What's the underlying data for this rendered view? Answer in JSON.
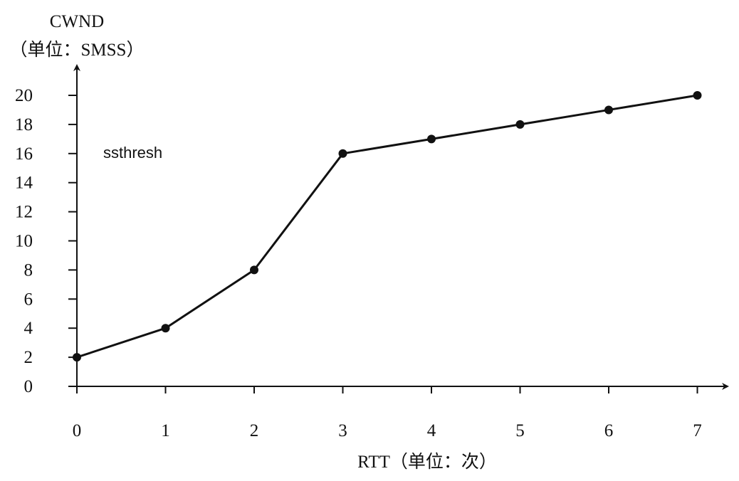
{
  "chart_data": {
    "type": "line",
    "ylabel_line1": "CWND",
    "ylabel_line2": "（单位：SMSS）",
    "xlabel": "RTT（单位：次）",
    "annotation": "ssthresh",
    "x_ticks": [
      "0",
      "1",
      "2",
      "3",
      "4",
      "5",
      "6",
      "7"
    ],
    "y_ticks": [
      "0",
      "2",
      "4",
      "6",
      "8",
      "10",
      "12",
      "14",
      "16",
      "18",
      "20"
    ],
    "xlim": [
      0,
      7
    ],
    "ylim": [
      0,
      20
    ],
    "series": [
      {
        "x": [
          0,
          1,
          2,
          3,
          4,
          5,
          6,
          7
        ],
        "y": [
          2,
          4,
          8,
          16,
          17,
          18,
          19,
          20
        ]
      }
    ],
    "colors": {
      "line": "#111111",
      "axis": "#111111"
    }
  }
}
